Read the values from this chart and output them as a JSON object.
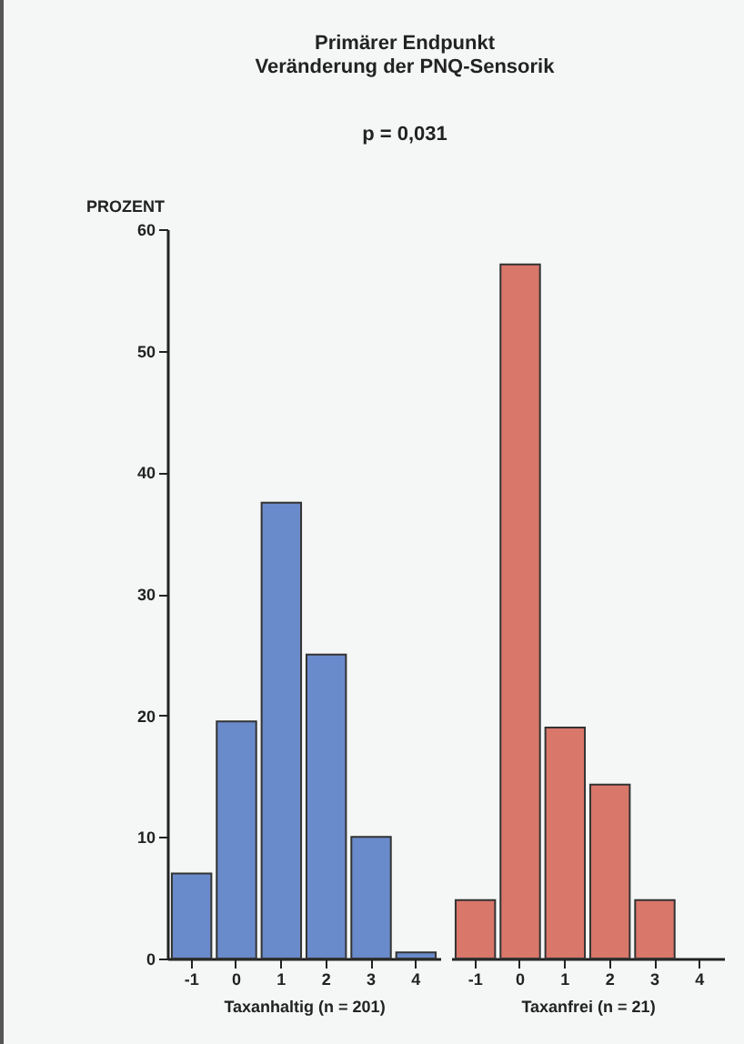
{
  "chart_data": [
    {
      "type": "bar",
      "title": "Primärer Endpunkt\nVeränderung der PNQ-Sensorik",
      "subtitle": "p = 0,031",
      "ylabel": "PROZENT",
      "xlabel": "Taxanhaltig (n = 201)",
      "categories": [
        "-1",
        "0",
        "1",
        "2",
        "3",
        "4"
      ],
      "values": [
        7,
        19.5,
        37.5,
        25,
        10,
        0.5
      ],
      "color": "#6a8bcb",
      "ylim": [
        0,
        60
      ],
      "yticks": [
        0,
        10,
        20,
        30,
        40,
        50,
        60
      ]
    },
    {
      "type": "bar",
      "xlabel": "Taxanfrei (n = 21)",
      "categories": [
        "-1",
        "0",
        "1",
        "2",
        "3",
        "4"
      ],
      "values": [
        4.8,
        57.1,
        19,
        14.3,
        4.8,
        0
      ],
      "color": "#d9776a",
      "ylim": [
        0,
        60
      ],
      "yticks": [
        0,
        10,
        20,
        30,
        40,
        50,
        60
      ],
      "tick_labels": "x"
    }
  ]
}
